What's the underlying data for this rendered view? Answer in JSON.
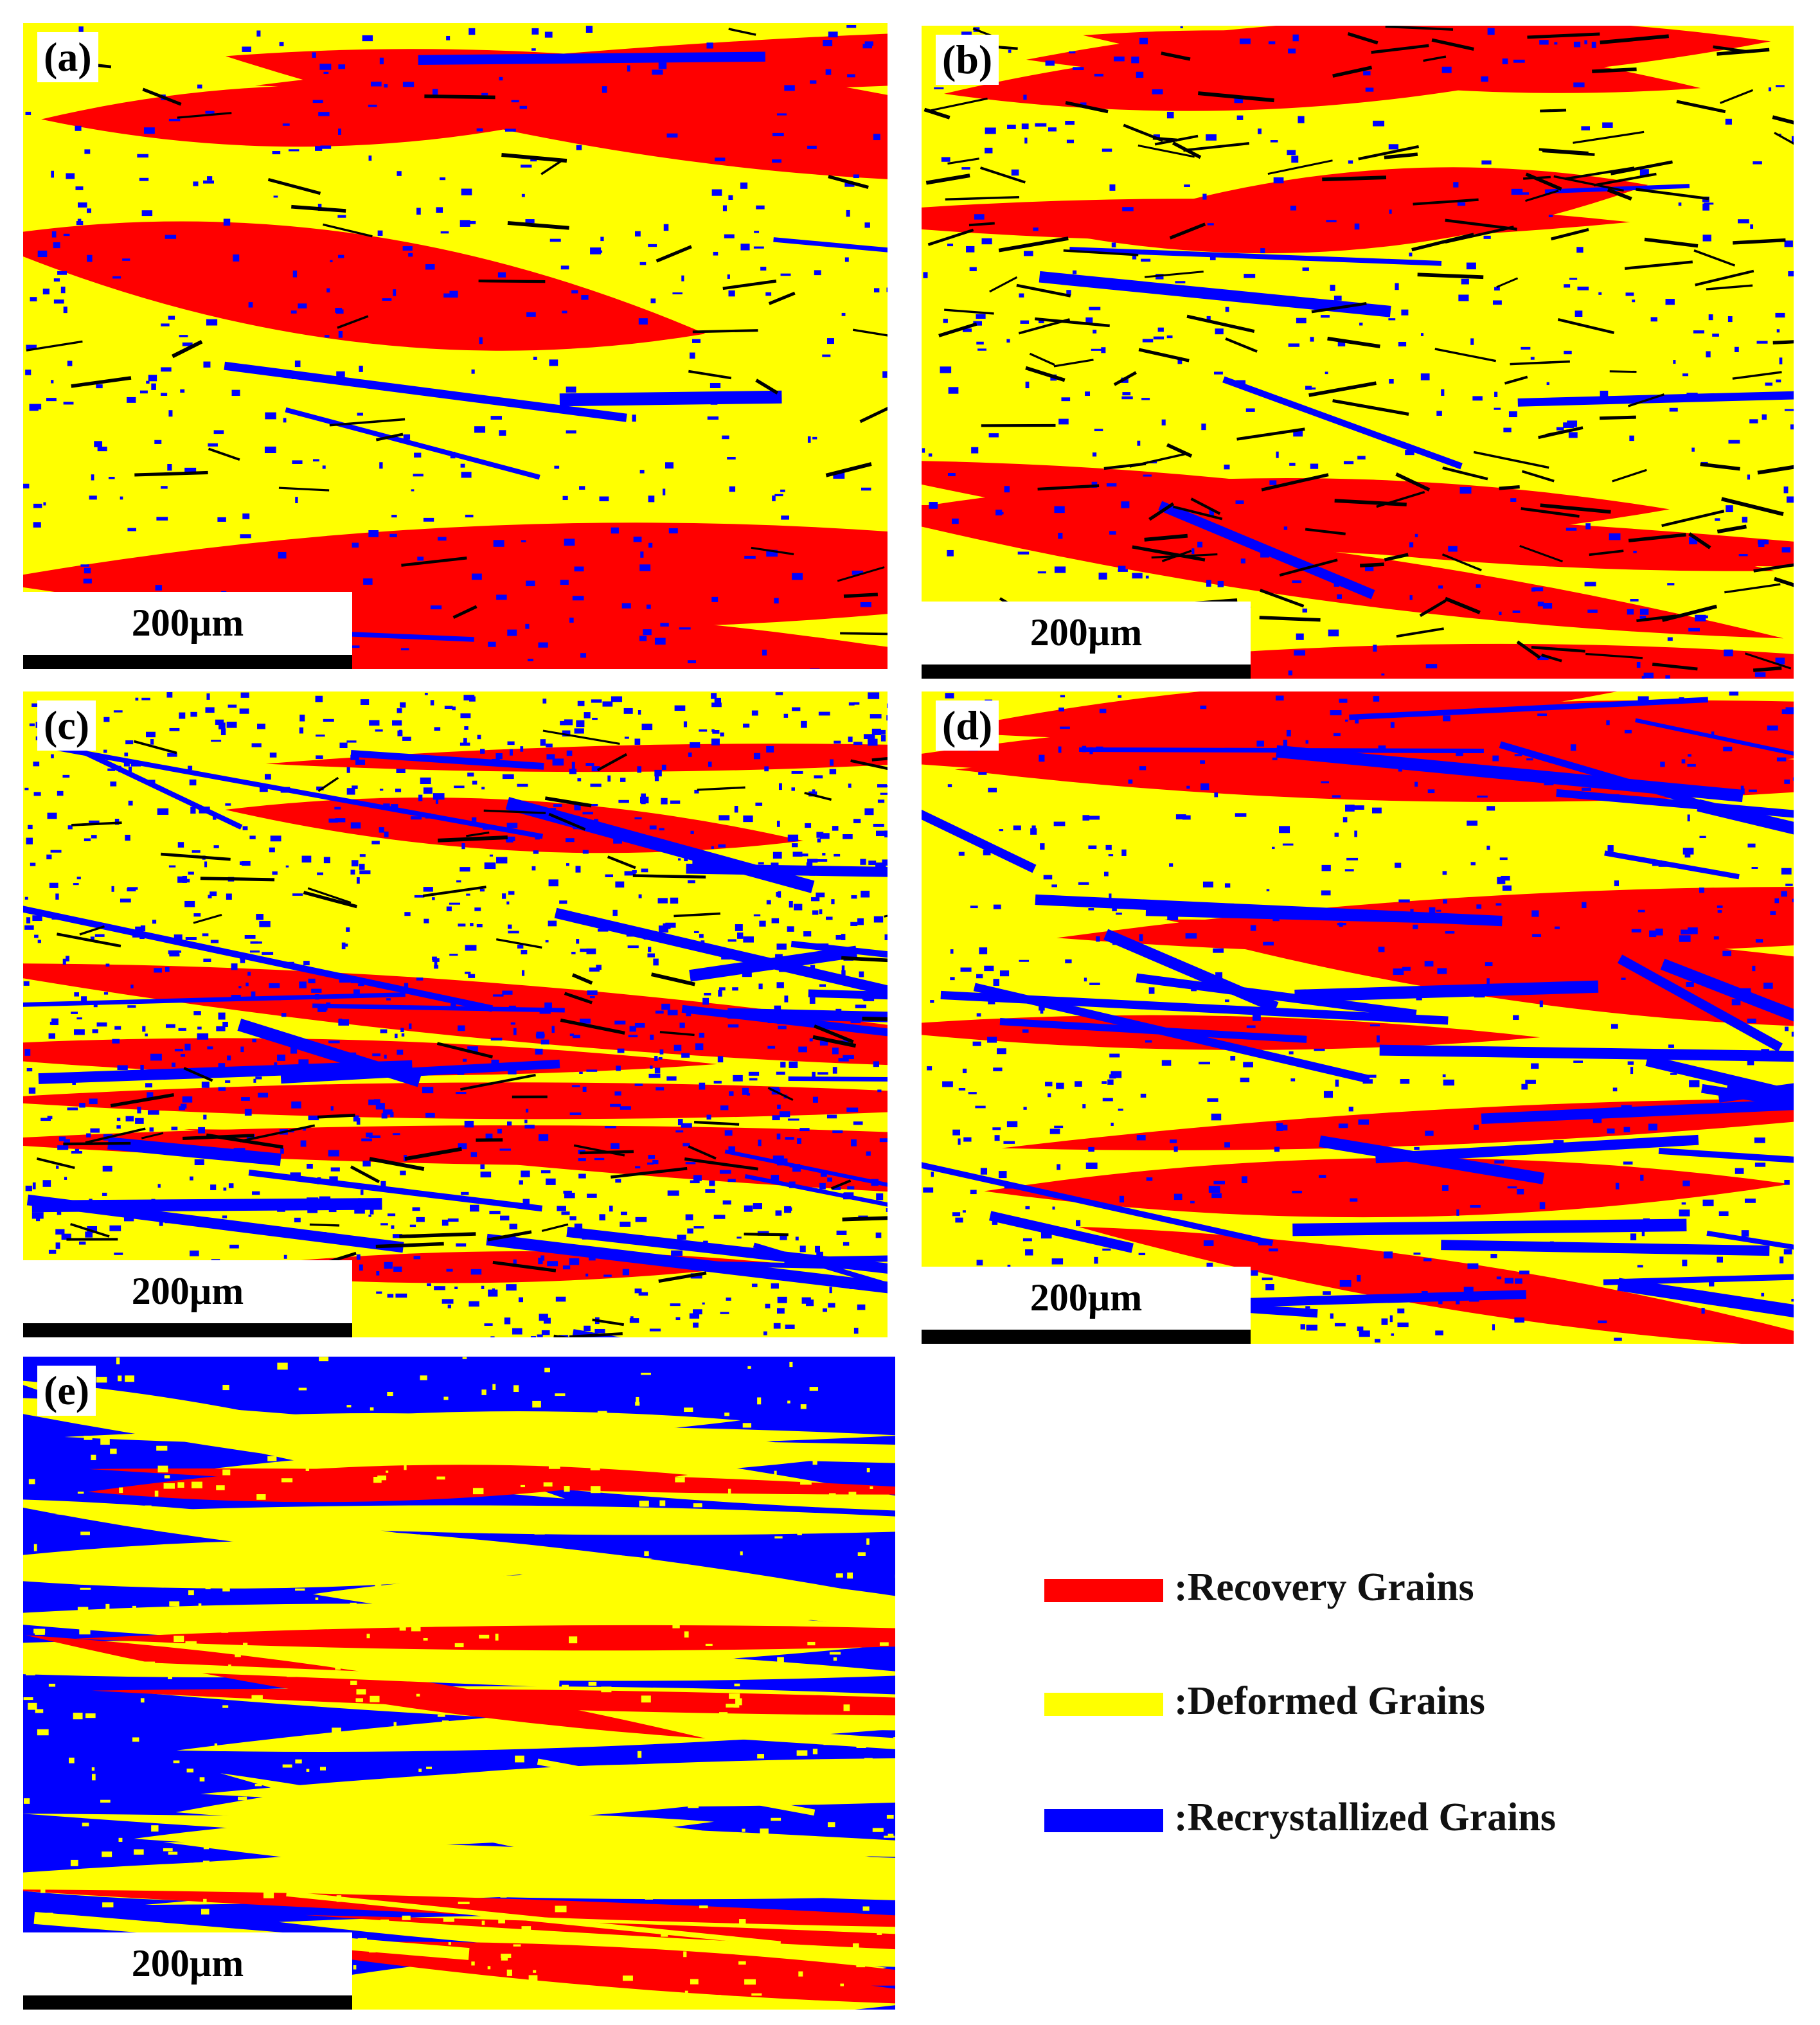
{
  "panels": [
    {
      "label": "(a)",
      "scale_bar": "200µm"
    },
    {
      "label": "(b)",
      "scale_bar": "200µm"
    },
    {
      "label": "(c)",
      "scale_bar": "200µm"
    },
    {
      "label": "(d)",
      "scale_bar": "200µm"
    },
    {
      "label": "(e)",
      "scale_bar": "200µm"
    }
  ],
  "legend": [
    {
      "label": ":Recovery Grains",
      "color": "#ff0000"
    },
    {
      "label": ":Deformed Grains",
      "color": "#ffff00"
    },
    {
      "label": ":Recrystallized Grains",
      "color": "#0000ff"
    }
  ]
}
